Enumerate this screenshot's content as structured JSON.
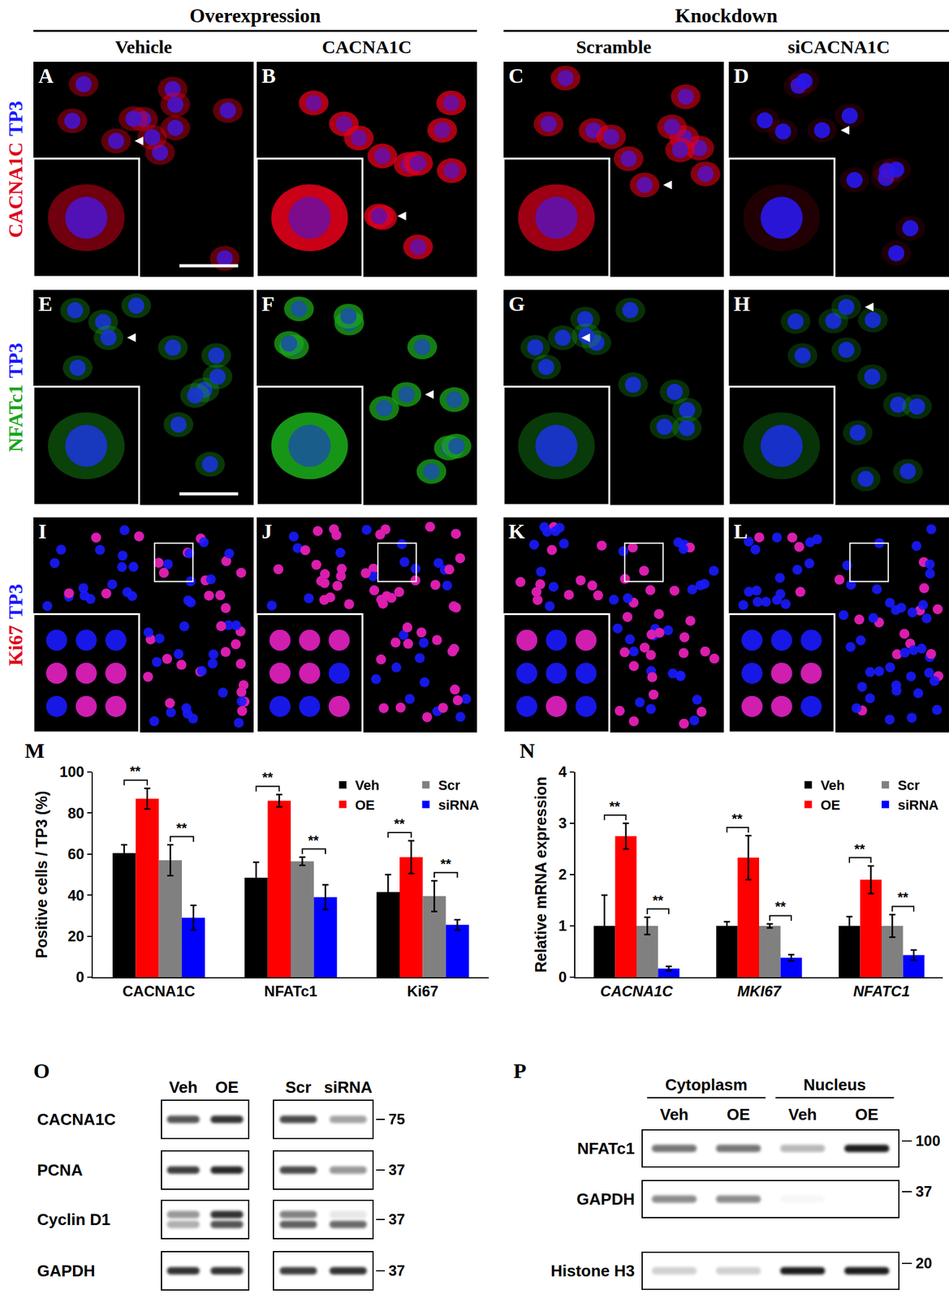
{
  "header": {
    "groups": [
      {
        "text": "Overexpression",
        "columns": [
          "Vehicle",
          "CACNA1C"
        ]
      },
      {
        "text": "Knockdown",
        "columns": [
          "Scramble",
          "siCACNA1C"
        ]
      }
    ]
  },
  "image_rows": [
    {
      "stains": [
        {
          "text": "CACNA1C",
          "color": "#e0001a"
        },
        {
          "text": "TP3",
          "color": "#1a1aff"
        }
      ],
      "panels": [
        {
          "letter": "A",
          "signal": 0.5
        },
        {
          "letter": "B",
          "signal": 0.9
        },
        {
          "letter": "C",
          "signal": 0.7
        },
        {
          "letter": "D",
          "signal": 0.15
        }
      ]
    },
    {
      "stains": [
        {
          "text": "NFATc1",
          "color": "#1aa51a"
        },
        {
          "text": "TP3",
          "color": "#1a1aff"
        }
      ],
      "panels": [
        {
          "letter": "E",
          "signal": 0.4
        },
        {
          "letter": "F",
          "signal": 0.9
        },
        {
          "letter": "G",
          "signal": 0.35
        },
        {
          "letter": "H",
          "signal": 0.3
        }
      ]
    },
    {
      "stains": [
        {
          "text": "Ki67",
          "color": "#e0001a"
        },
        {
          "text": "TP3",
          "color": "#1a1aff"
        }
      ],
      "panels": [
        {
          "letter": "I",
          "signal": 0.45
        },
        {
          "letter": "J",
          "signal": 0.65
        },
        {
          "letter": "K",
          "signal": 0.45
        },
        {
          "letter": "L",
          "signal": 0.25
        }
      ]
    }
  ],
  "chart_data": [
    {
      "panel": "M",
      "type": "bar",
      "categories": [
        "CACNA1C",
        "NFATc1",
        "Ki67"
      ],
      "y_label": "Positive cells / TP3 (%)",
      "ylim": [
        0,
        100
      ],
      "yticks": [
        0,
        20,
        40,
        60,
        80,
        100
      ],
      "legend": "top right",
      "series": [
        {
          "name": "Veh",
          "color": "#000000",
          "values": [
            60.5,
            48.5,
            41.5
          ],
          "errors": [
            4,
            7.5,
            8.5
          ]
        },
        {
          "name": "OE",
          "color": "#ff0000",
          "values": [
            87,
            86,
            58.5
          ],
          "errors": [
            5,
            3,
            8
          ]
        },
        {
          "name": "Scr",
          "color": "#808080",
          "values": [
            57,
            56.5,
            39.5
          ],
          "errors": [
            7.5,
            2,
            7.5
          ]
        },
        {
          "name": "siRNA",
          "color": "#0000ff",
          "values": [
            29,
            39,
            25.5
          ],
          "errors": [
            6,
            6,
            2.5
          ]
        }
      ],
      "annotations": [
        {
          "category": "CACNA1C",
          "pair": [
            "Veh",
            "OE"
          ],
          "text": "**"
        },
        {
          "category": "CACNA1C",
          "pair": [
            "Scr",
            "siRNA"
          ],
          "text": "**"
        },
        {
          "category": "NFATc1",
          "pair": [
            "Veh",
            "OE"
          ],
          "text": "**"
        },
        {
          "category": "NFATc1",
          "pair": [
            "Scr",
            "siRNA"
          ],
          "text": "**"
        },
        {
          "category": "Ki67",
          "pair": [
            "Veh",
            "OE"
          ],
          "text": "**"
        },
        {
          "category": "Ki67",
          "pair": [
            "Scr",
            "siRNA"
          ],
          "text": "**"
        }
      ]
    },
    {
      "panel": "N",
      "type": "bar",
      "categories": [
        "CACNA1C",
        "MKI67",
        "NFATC1"
      ],
      "y_label": "Relative mRNA expression",
      "ylim": [
        0,
        4
      ],
      "yticks": [
        0,
        1,
        2,
        3,
        4
      ],
      "legend": "top right",
      "series": [
        {
          "name": "Veh",
          "color": "#000000",
          "values": [
            1,
            1,
            1
          ],
          "errors": [
            0.6,
            0.08,
            0.18
          ]
        },
        {
          "name": "OE",
          "color": "#ff0000",
          "values": [
            2.75,
            2.33,
            1.9
          ],
          "errors": [
            0.25,
            0.43,
            0.27
          ]
        },
        {
          "name": "Scr",
          "color": "#808080",
          "values": [
            1,
            1,
            1
          ],
          "errors": [
            0.17,
            0.04,
            0.22
          ]
        },
        {
          "name": "siRNA",
          "color": "#0000ff",
          "values": [
            0.17,
            0.38,
            0.43
          ],
          "errors": [
            0.04,
            0.06,
            0.1
          ]
        }
      ],
      "annotations": [
        {
          "category": "CACNA1C",
          "pair": [
            "Veh",
            "OE"
          ],
          "text": "**"
        },
        {
          "category": "CACNA1C",
          "pair": [
            "Scr",
            "siRNA"
          ],
          "text": "**"
        },
        {
          "category": "MKI67",
          "pair": [
            "Veh",
            "OE"
          ],
          "text": "**"
        },
        {
          "category": "MKI67",
          "pair": [
            "Scr",
            "siRNA"
          ],
          "text": "**"
        },
        {
          "category": "NFATC1",
          "pair": [
            "Veh",
            "OE"
          ],
          "text": "**"
        },
        {
          "category": "NFATC1",
          "pair": [
            "Scr",
            "siRNA"
          ],
          "text": "**"
        }
      ]
    }
  ],
  "blots": [
    {
      "panel": "O",
      "rows": [
        "CACNA1C",
        "PCNA",
        "Cyclin D1",
        "GAPDH"
      ],
      "markers": [
        75,
        37,
        37,
        37
      ],
      "groups": [
        {
          "lanes": [
            "Veh",
            "OE"
          ],
          "bands": [
            [
              [
                0.75
              ],
              [
                0.9
              ]
            ],
            [
              [
                0.85
              ],
              [
                0.95
              ]
            ],
            [
              [
                0.45,
                0.35
              ],
              [
                0.9,
                0.75
              ]
            ],
            [
              [
                0.9
              ],
              [
                0.9
              ]
            ]
          ]
        },
        {
          "lanes": [
            "Scr",
            "siRNA"
          ],
          "bands": [
            [
              [
                0.8
              ],
              [
                0.4
              ]
            ],
            [
              [
                0.8
              ],
              [
                0.45
              ]
            ],
            [
              [
                0.55,
                0.7
              ],
              [
                0.1,
                0.65
              ]
            ],
            [
              [
                0.85
              ],
              [
                0.9
              ]
            ]
          ]
        }
      ]
    },
    {
      "panel": "P",
      "rows": [
        "NFATc1",
        "GAPDH",
        "Histone H3"
      ],
      "markers": [
        100,
        37,
        20
      ],
      "groups": [
        {
          "text": "Cytoplasm",
          "lanes": [
            "Veh",
            "OE"
          ]
        },
        {
          "text": "Nucleus",
          "lanes": [
            "Veh",
            "OE"
          ]
        }
      ],
      "bands": [
        [
          0.6,
          0.6,
          0.3,
          1.0
        ],
        [
          0.5,
          0.5,
          0.03,
          0
        ],
        [
          0.2,
          0.2,
          1.0,
          1.0
        ]
      ]
    }
  ]
}
